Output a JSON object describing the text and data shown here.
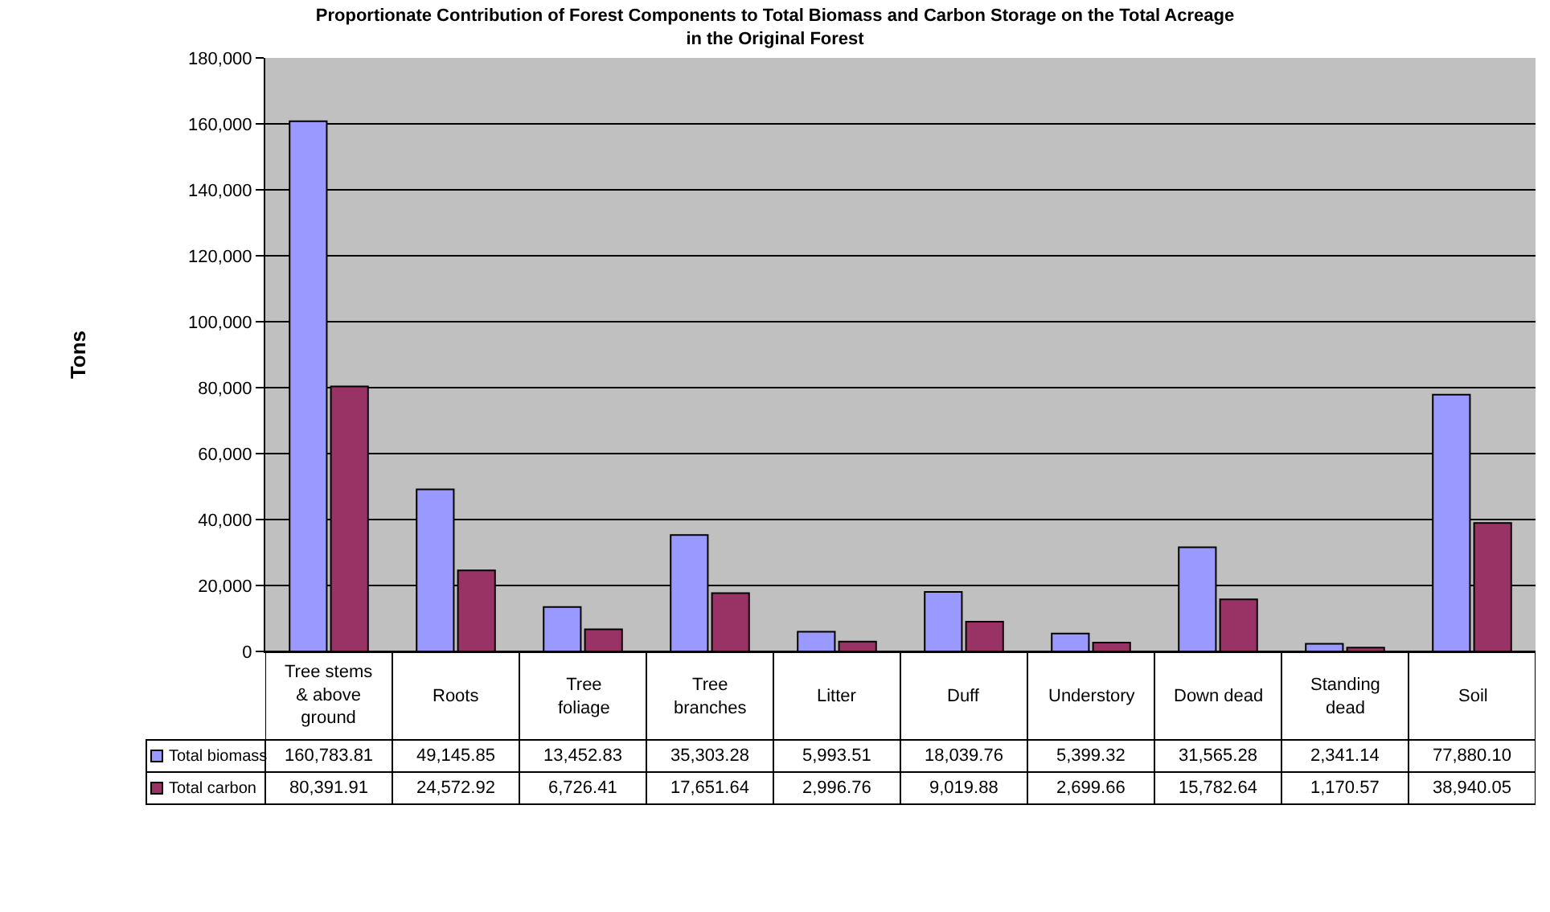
{
  "chart_data": {
    "type": "bar",
    "title": "Proportionate Contribution of Forest Components to Total Biomass and Carbon Storage on the Total Acreage in the Original Forest",
    "ylabel": "Tons",
    "categories": [
      "Tree stems & above ground",
      "Roots",
      "Tree foliage",
      "Tree branches",
      "Litter",
      "Duff",
      "Understory",
      "Down dead",
      "Standing dead",
      "Soil"
    ],
    "series": [
      {
        "name": "Total biomass",
        "color": "#9999ff",
        "values": [
          160783.81,
          49145.85,
          13452.83,
          35303.28,
          5993.51,
          18039.76,
          5399.32,
          31565.28,
          2341.14,
          77880.1
        ],
        "value_labels": [
          "160,783.81",
          "49,145.85",
          "13,452.83",
          "35,303.28",
          "5,993.51",
          "18,039.76",
          "5,399.32",
          "31,565.28",
          "2,341.14",
          "77,880.10"
        ]
      },
      {
        "name": "Total carbon",
        "color": "#993366",
        "values": [
          80391.91,
          24572.92,
          6726.41,
          17651.64,
          2996.76,
          9019.88,
          2699.66,
          15782.64,
          1170.57,
          38940.05
        ],
        "value_labels": [
          "80,391.91",
          "24,572.92",
          "6,726.41",
          "17,651.64",
          "2,996.76",
          "9,019.88",
          "2,699.66",
          "15,782.64",
          "1,170.57",
          "38,940.05"
        ]
      }
    ],
    "ylim": [
      0,
      180000
    ],
    "yticks": [
      0,
      {
        "value": 20000,
        "label": "20,000"
      },
      {
        "value": 40000,
        "label": "40,000"
      },
      {
        "value": 60000,
        "label": "60,000"
      },
      {
        "value": 80000,
        "label": "80,000"
      },
      {
        "value": 100000,
        "label": "100,000"
      },
      {
        "value": 120000,
        "label": "120,000"
      },
      {
        "value": 140000,
        "label": "140,000"
      },
      {
        "value": 160000,
        "label": "160,000"
      },
      {
        "value": 180000,
        "label": "180,000"
      }
    ],
    "grid": "y",
    "legend": "bottom left"
  }
}
